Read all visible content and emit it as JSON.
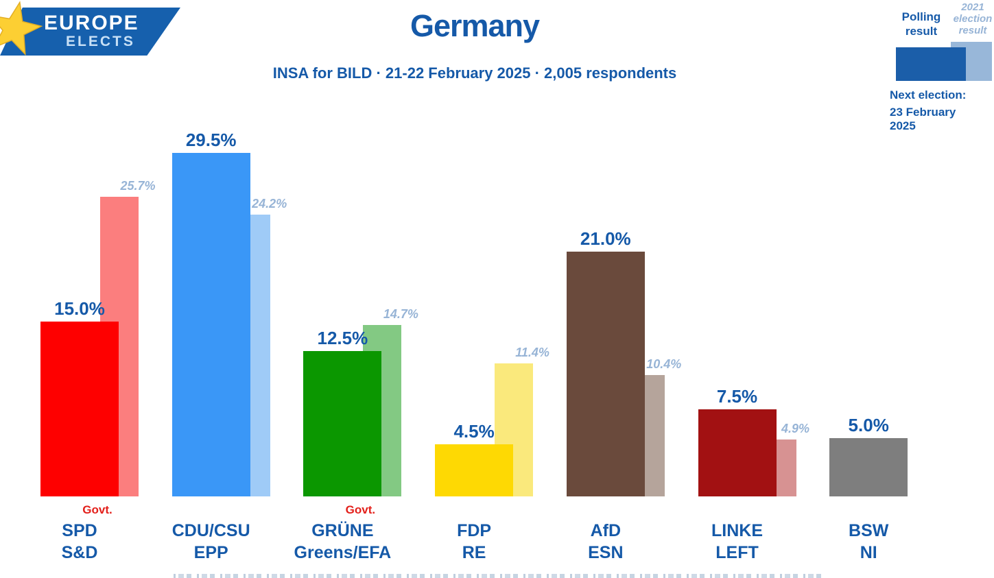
{
  "logo": {
    "line1": "EUROPE",
    "line2": "ELECTS"
  },
  "header": {
    "title": "Germany",
    "subtitle": "INSA for BILD · 21-22 February 2025 · 2,005 respondents"
  },
  "legend": {
    "polling_label": "Polling result",
    "election_label": "2021 election result",
    "next_election_label": "Next election:",
    "next_election_date": "23 February 2025"
  },
  "chart_data": {
    "type": "bar",
    "title": "Germany",
    "subtitle": "INSA for BILD · 21-22 February 2025 · 2,005 respondents",
    "unit": "%",
    "ylim": [
      0,
      31
    ],
    "grid": false,
    "legend_position": "top-right",
    "series": [
      {
        "name": "Polling result"
      },
      {
        "name": "2021 election result"
      }
    ],
    "govt_label": "Govt.",
    "parties": [
      {
        "party": "SPD",
        "ep_group": "S&D",
        "polling": 15.0,
        "election_2021": 25.7,
        "government": true,
        "color": "#fe0000",
        "color_2021": "#fb7e7e"
      },
      {
        "party": "CDU/CSU",
        "ep_group": "EPP",
        "polling": 29.5,
        "election_2021": 24.2,
        "government": false,
        "color": "#3a97f7",
        "color_2021": "#9fcbf7"
      },
      {
        "party": "GRÜNE",
        "ep_group": "Greens/EFA",
        "polling": 12.5,
        "election_2021": 14.7,
        "government": true,
        "color": "#0b9700",
        "color_2021": "#83c983"
      },
      {
        "party": "FDP",
        "ep_group": "RE",
        "polling": 4.5,
        "election_2021": 11.4,
        "government": false,
        "color": "#fed903",
        "color_2021": "#fae97c"
      },
      {
        "party": "AfD",
        "ep_group": "ESN",
        "polling": 21.0,
        "election_2021": 10.4,
        "government": false,
        "color": "#6a4a3c",
        "color_2021": "#b5a49b"
      },
      {
        "party": "LINKE",
        "ep_group": "LEFT",
        "polling": 7.5,
        "election_2021": 4.9,
        "government": false,
        "color": "#a21112",
        "color_2021": "#d79292"
      },
      {
        "party": "BSW",
        "ep_group": "NI",
        "polling": 5.0,
        "election_2021": null,
        "government": false,
        "color": "#7e7e7e",
        "color_2021": null
      }
    ]
  },
  "colors": {
    "text_blue": "#1559a8",
    "light_blue_text": "#97b4d6",
    "govt_red": "#e3201b",
    "banner_blue": "#1660ad",
    "star_yellow": "#fccf33"
  }
}
